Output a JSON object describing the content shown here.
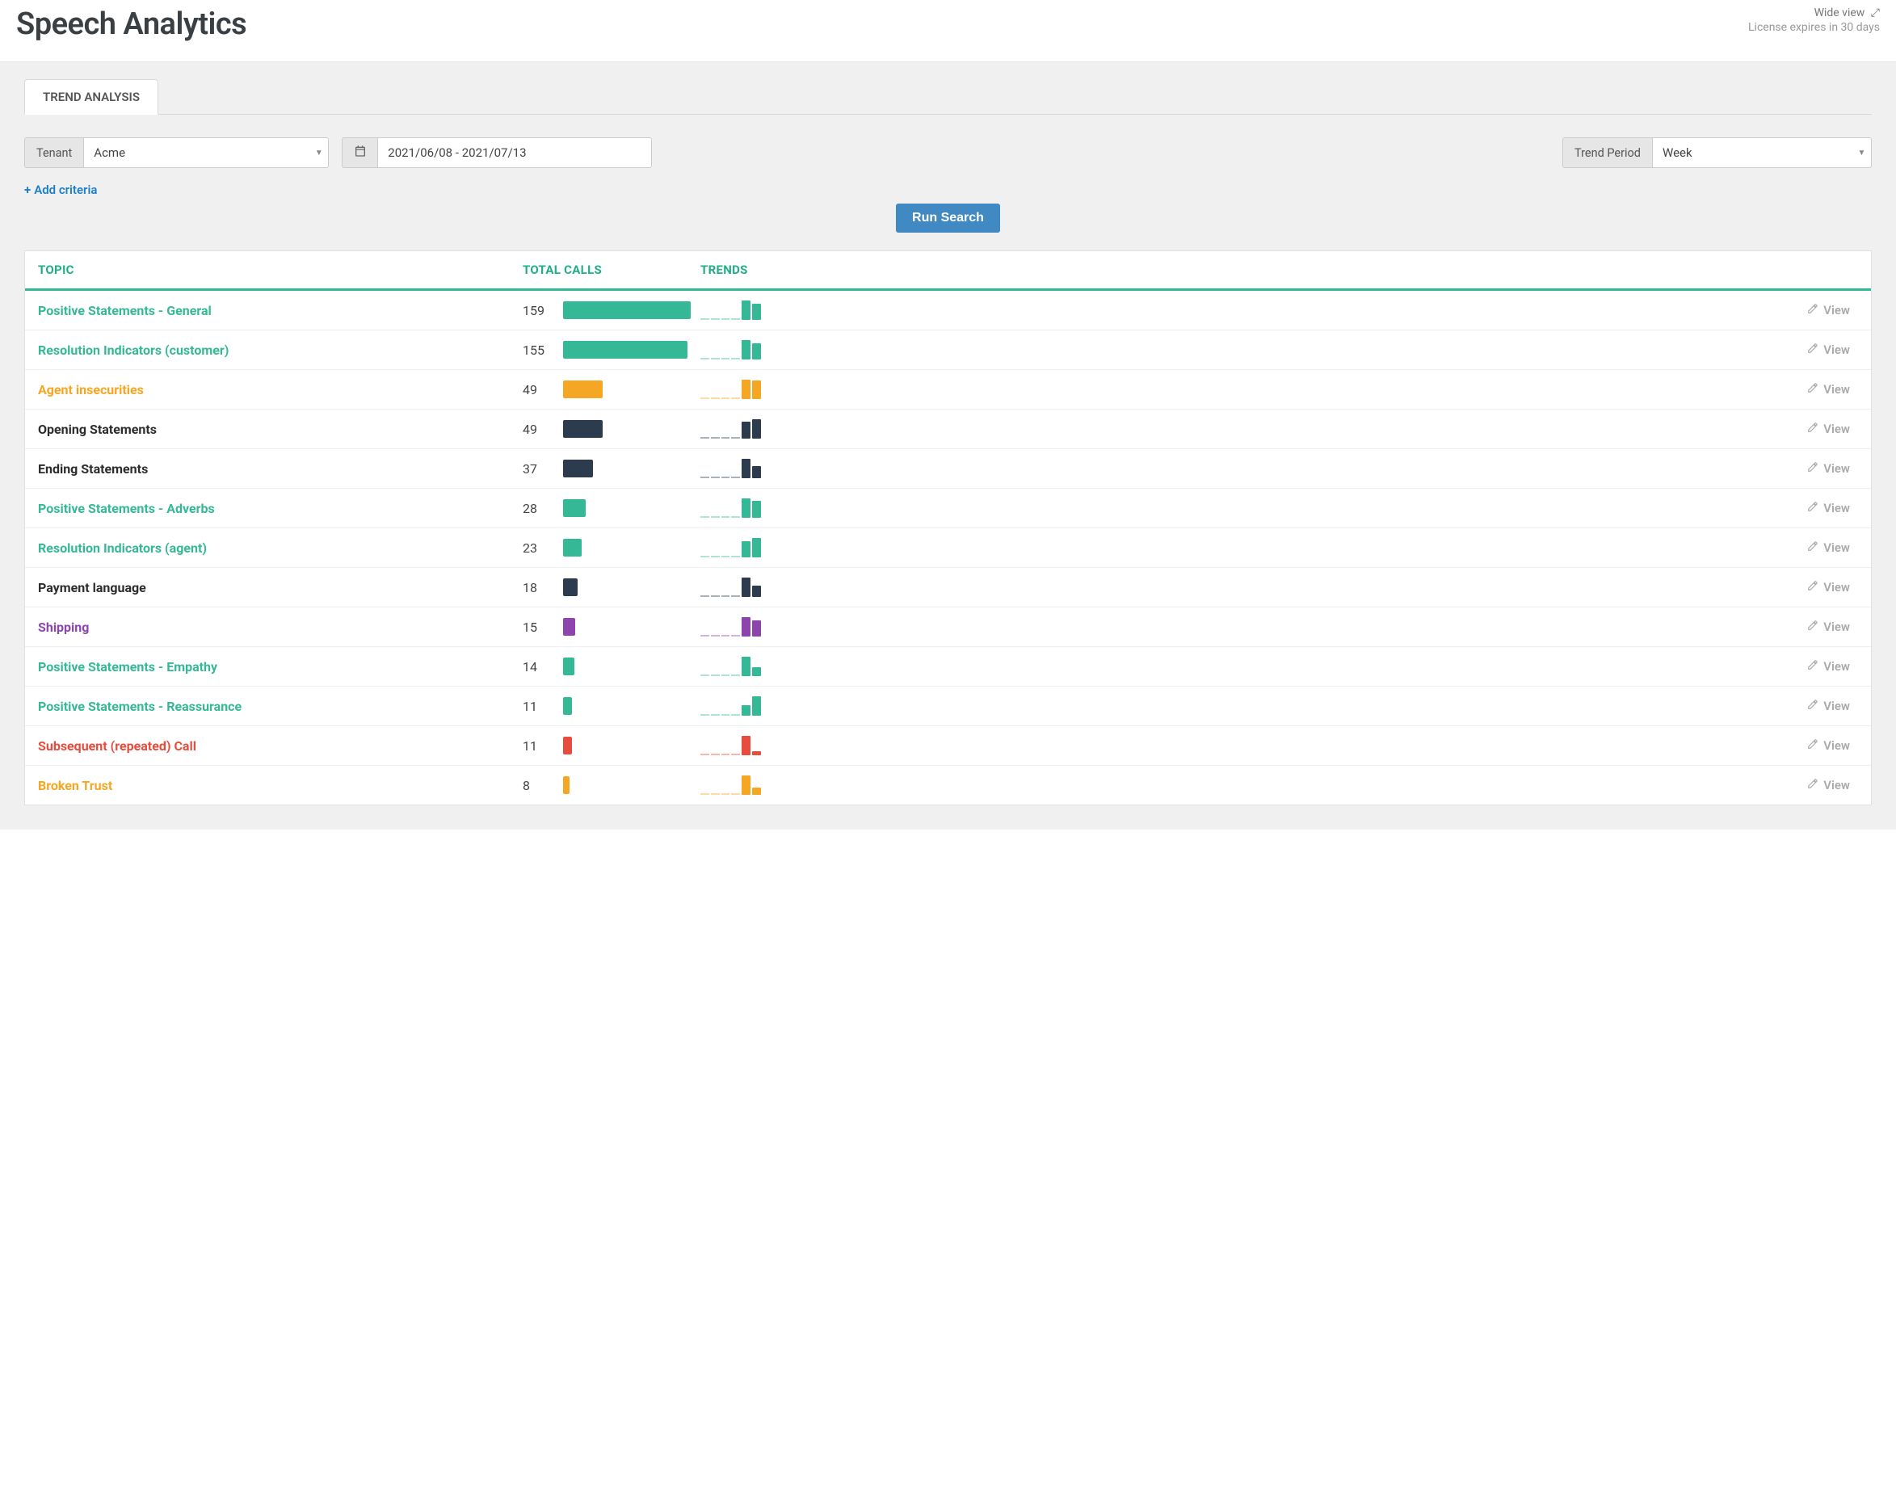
{
  "colors": {
    "green": "#35b895",
    "orange": "#f5a623",
    "navy": "#2d3b4e",
    "purple": "#8e44ad",
    "red": "#e74c3c",
    "grey_text": "#999999",
    "link_blue": "#1e7fc9",
    "header_green": "#1fae88"
  },
  "header": {
    "title": "Speech Analytics",
    "wide_view_label": "Wide view",
    "license_expiry": "License expires in 30 days"
  },
  "tabs": {
    "trend_analysis": "TREND ANALYSIS"
  },
  "filters": {
    "tenant_label": "Tenant",
    "tenant_value": "Acme",
    "date_range": "2021/06/08 - 2021/07/13",
    "trend_period_label": "Trend Period",
    "trend_period_value": "Week"
  },
  "actions": {
    "add_criteria": "Add criteria",
    "run_search": "Run Search",
    "view": "View"
  },
  "table": {
    "headers": {
      "topic": "TOPIC",
      "total_calls": "TOTAL CALLS",
      "trends": "TRENDS"
    },
    "max_total_calls": 159,
    "rows": [
      {
        "topic": "Positive Statements - General",
        "total": 159,
        "color_key": "green",
        "trend": [
          0,
          0,
          0,
          0,
          95,
          80
        ]
      },
      {
        "topic": "Resolution Indicators (customer)",
        "total": 155,
        "color_key": "green",
        "trend": [
          0,
          0,
          0,
          0,
          95,
          80
        ]
      },
      {
        "topic": "Agent insecurities",
        "total": 49,
        "color_key": "orange",
        "trend": [
          0,
          0,
          0,
          0,
          95,
          90
        ]
      },
      {
        "topic": "Opening Statements",
        "total": 49,
        "color_key": "navy",
        "trend": [
          0,
          0,
          0,
          0,
          85,
          95
        ]
      },
      {
        "topic": "Ending Statements",
        "total": 37,
        "color_key": "navy",
        "trend": [
          0,
          0,
          0,
          0,
          95,
          60
        ]
      },
      {
        "topic": "Positive Statements - Adverbs",
        "total": 28,
        "color_key": "green",
        "trend": [
          0,
          0,
          0,
          0,
          95,
          85
        ]
      },
      {
        "topic": "Resolution Indicators (agent)",
        "total": 23,
        "color_key": "green",
        "trend": [
          0,
          0,
          0,
          0,
          80,
          95
        ]
      },
      {
        "topic": "Payment language",
        "total": 18,
        "color_key": "navy",
        "trend": [
          0,
          0,
          0,
          0,
          95,
          55
        ]
      },
      {
        "topic": "Shipping",
        "total": 15,
        "color_key": "purple",
        "trend": [
          0,
          0,
          0,
          0,
          95,
          80
        ]
      },
      {
        "topic": "Positive Statements - Empathy",
        "total": 14,
        "color_key": "green",
        "trend": [
          0,
          0,
          0,
          0,
          95,
          45
        ]
      },
      {
        "topic": "Positive Statements - Reassurance",
        "total": 11,
        "color_key": "green",
        "trend": [
          0,
          0,
          0,
          0,
          50,
          95
        ]
      },
      {
        "topic": "Subsequent (repeated) Call",
        "total": 11,
        "color_key": "red",
        "trend": [
          0,
          0,
          0,
          0,
          95,
          20
        ]
      },
      {
        "topic": "Broken Trust",
        "total": 8,
        "color_key": "orange",
        "trend": [
          0,
          0,
          0,
          0,
          95,
          35
        ]
      }
    ]
  }
}
